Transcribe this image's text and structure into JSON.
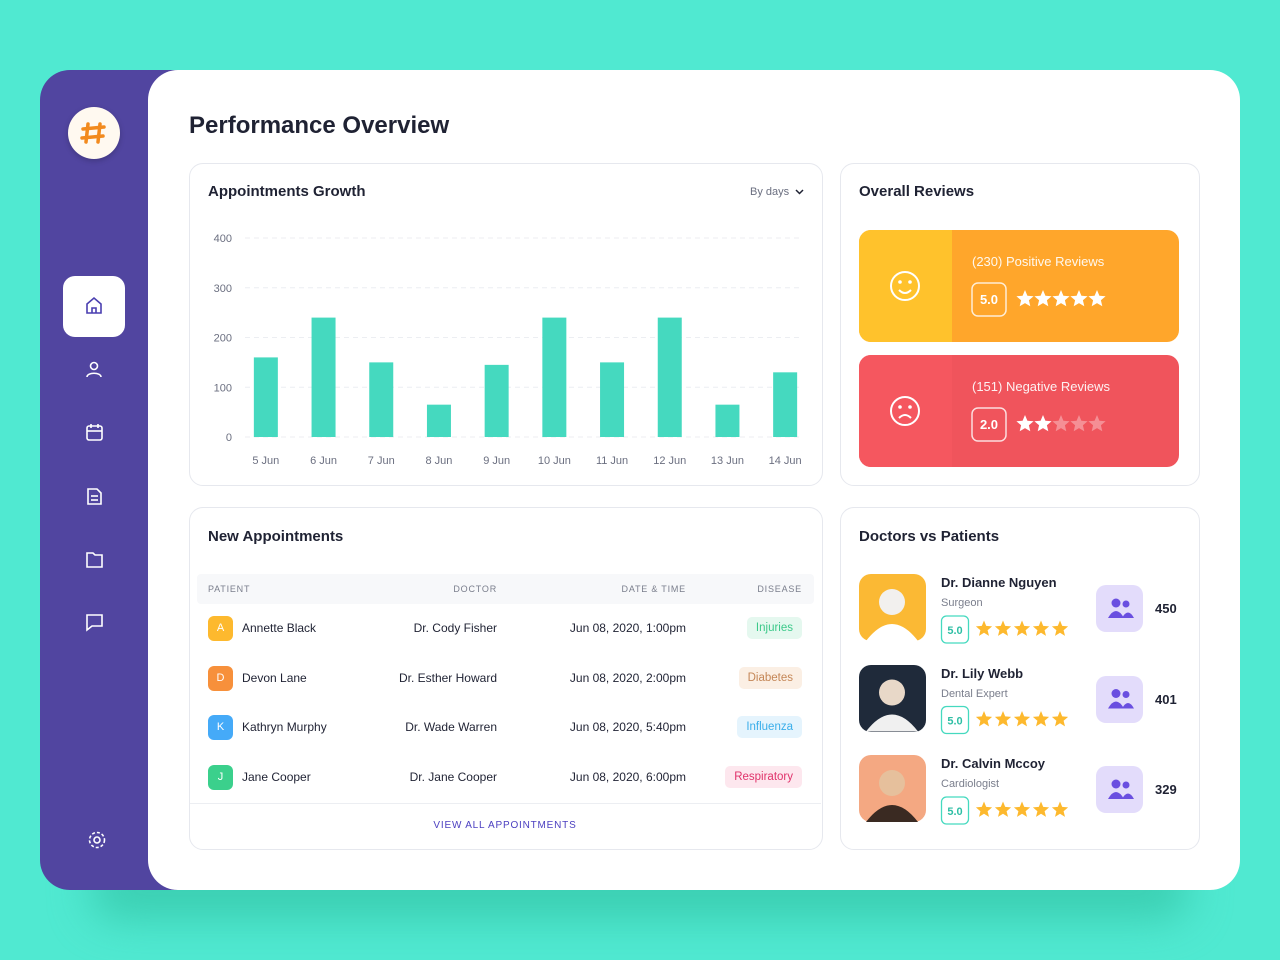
{
  "header": {
    "title": "Performance Overview"
  },
  "chart_data": {
    "type": "bar",
    "title": "Appointments Growth",
    "filter": "By days",
    "categories": [
      "5 Jun",
      "6 Jun",
      "7 Jun",
      "8 Jun",
      "9 Jun",
      "10 Jun",
      "11 Jun",
      "12 Jun",
      "13 Jun",
      "14 Jun"
    ],
    "values": [
      160,
      240,
      150,
      65,
      145,
      240,
      150,
      240,
      65,
      130
    ],
    "color": "#45d9bf",
    "ylim": [
      0,
      400
    ],
    "yticks": [
      0,
      100,
      200,
      300,
      400
    ],
    "grid": true
  },
  "reviews": {
    "title": "Overall Reviews",
    "items": [
      {
        "label": "(230) Positive Reviews",
        "rating": {
          "value": 5,
          "label": "5.0"
        },
        "color": "#ffa62b"
      },
      {
        "label": "(151) Negative Reviews",
        "rating": {
          "value": 2,
          "label": "2.0"
        },
        "color": "#f0545c"
      }
    ]
  },
  "appointments": {
    "title": "New Appointments",
    "columns": [
      "PATIENT",
      "DOCTOR",
      "DATE & TIME",
      "DISEASE"
    ],
    "rows": [
      {
        "initial": "A",
        "patient": "Annette Black",
        "doctor": "Dr. Cody Fisher",
        "datetime": "Jun 08, 2020, 1:00pm",
        "disease": "Injuries"
      },
      {
        "initial": "D",
        "patient": "Devon Lane",
        "doctor": "Dr. Esther Howard",
        "datetime": "Jun 08, 2020, 2:00pm",
        "disease": "Diabetes"
      },
      {
        "initial": "K",
        "patient": "Kathryn Murphy",
        "doctor": "Dr. Wade Warren",
        "datetime": "Jun 08, 2020, 5:40pm",
        "disease": "Influenza"
      },
      {
        "initial": "J",
        "patient": "Jane Cooper",
        "doctor": "Dr. Jane Cooper",
        "datetime": "Jun 08, 2020, 6:00pm",
        "disease": "Respiratory"
      }
    ],
    "link": "VIEW ALL APPOINTMENTS"
  },
  "doctors": {
    "title": "Doctors vs Patients",
    "items": [
      {
        "name": "Dr. Dianne Nguyen",
        "role": "Surgeon",
        "rating": {
          "value": 5,
          "label": "5.0"
        },
        "patients": 450
      },
      {
        "name": "Dr. Lily Webb",
        "role": "Dental Expert",
        "rating": {
          "value": 5,
          "label": "5.0"
        },
        "patients": 401
      },
      {
        "name": "Dr. Calvin Mccoy",
        "role": "Cardiologist",
        "rating": {
          "value": 5,
          "label": "5.0"
        },
        "patients": 329
      }
    ]
  }
}
